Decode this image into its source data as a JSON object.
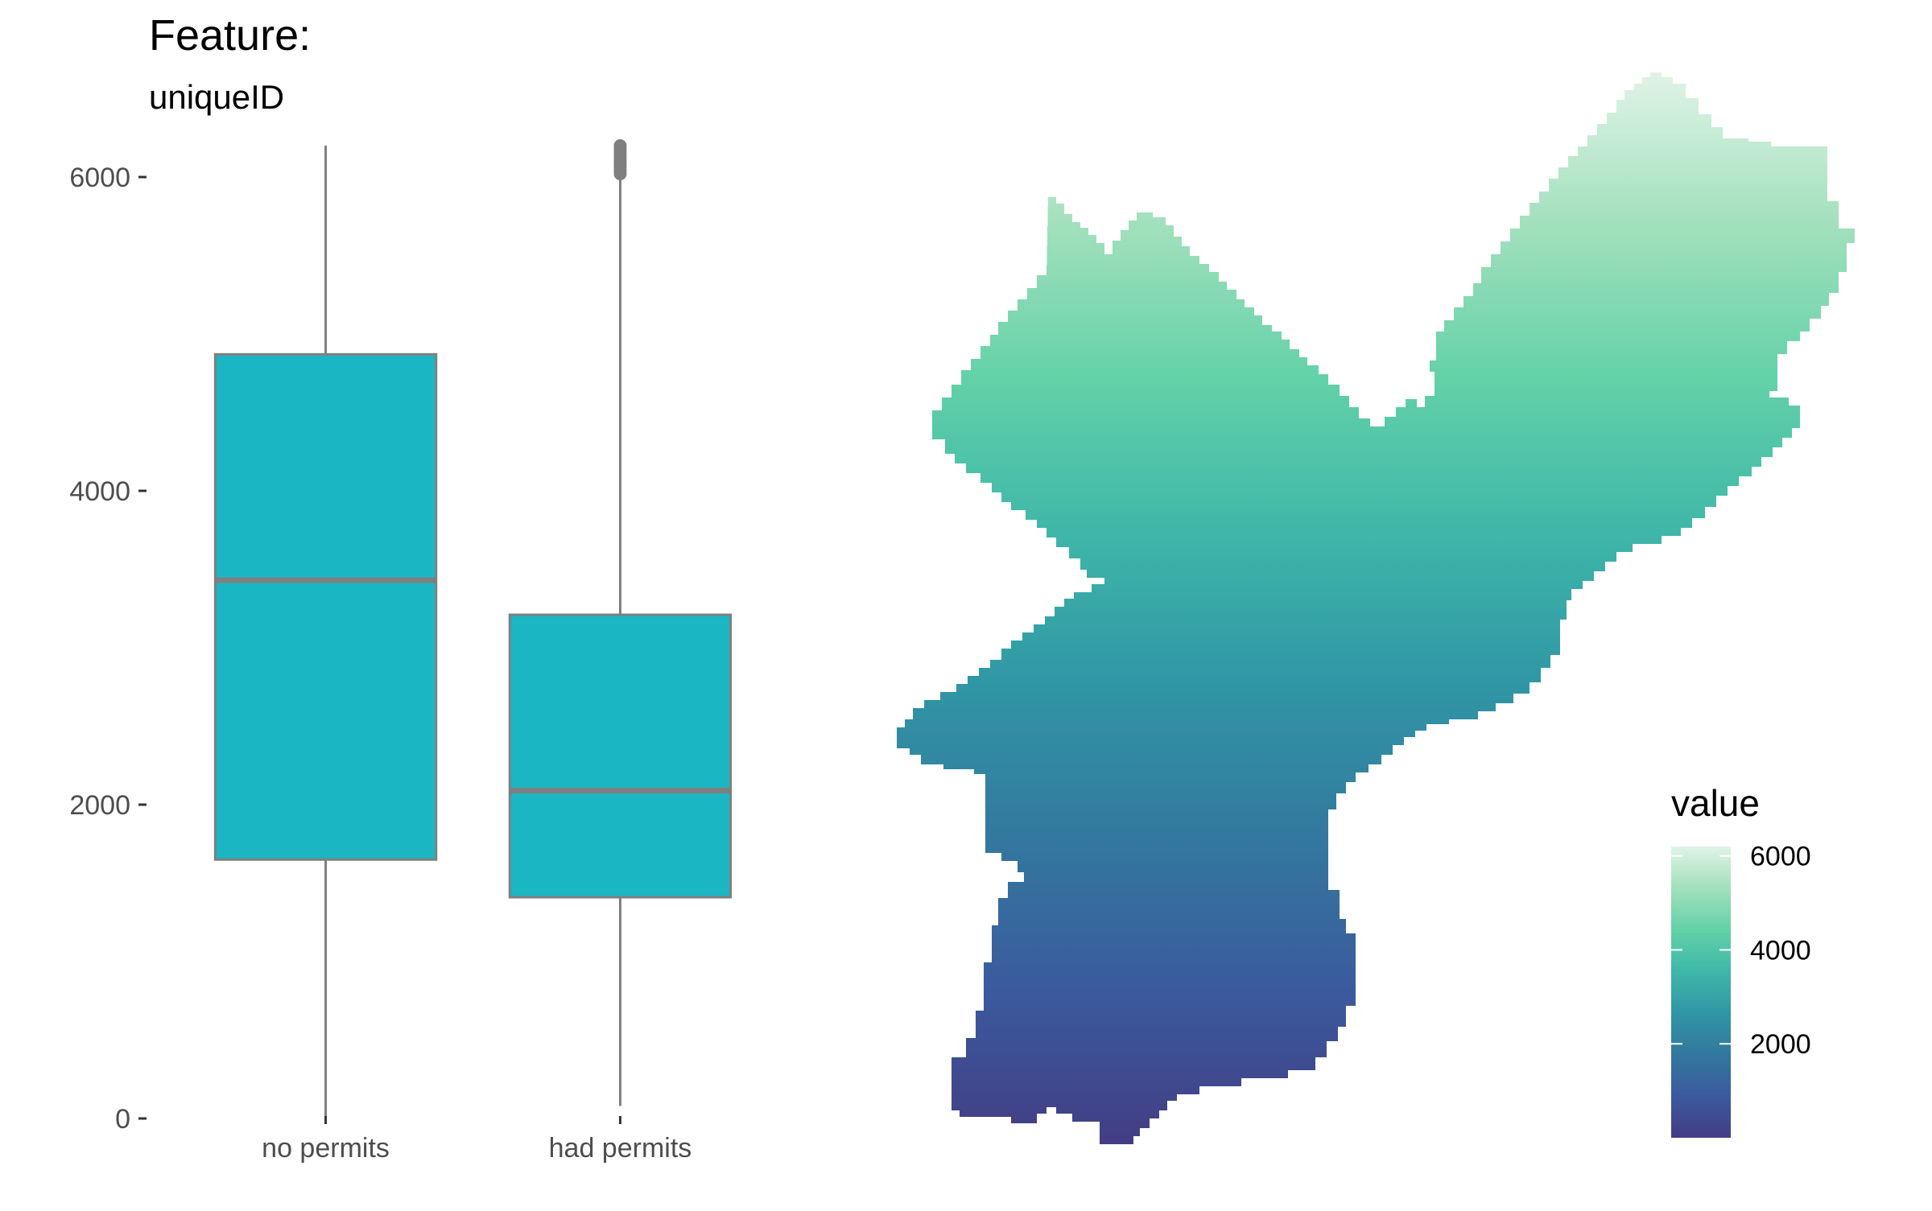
{
  "title": "Feature:",
  "subtitle": "uniqueID",
  "chart_data": [
    {
      "type": "box",
      "categories": [
        "no permits",
        "had permits"
      ],
      "boxes": [
        {
          "category": "no permits",
          "whisker_low": 0,
          "q1": 1650,
          "median": 3430,
          "q3": 4870,
          "whisker_high": 6200,
          "outliers": []
        },
        {
          "category": "had permits",
          "whisker_low": 80,
          "q1": 1410,
          "median": 2090,
          "q3": 3210,
          "whisker_high": 6000,
          "outliers": [
            6020,
            6040,
            6060,
            6080,
            6100,
            6120,
            6140,
            6160,
            6180,
            6200
          ]
        }
      ],
      "ylim": [
        0,
        6400
      ],
      "yticks": [
        0,
        2000,
        4000,
        6000
      ],
      "fill_color": "#1bb6c4",
      "line_color": "#7f7f7f",
      "grid": false
    },
    {
      "type": "map",
      "fill": "gradient",
      "legend": {
        "title": "value",
        "ticks": [
          2000,
          4000,
          6000
        ],
        "range": [
          0,
          6200
        ],
        "placement": "bottom-right"
      },
      "color_scale": [
        "#433d84",
        "#3b5a9d",
        "#33789e",
        "#3096a5",
        "#3fb7a8",
        "#63d1a8",
        "#a2e0bc",
        "#e0f3e6"
      ]
    }
  ]
}
